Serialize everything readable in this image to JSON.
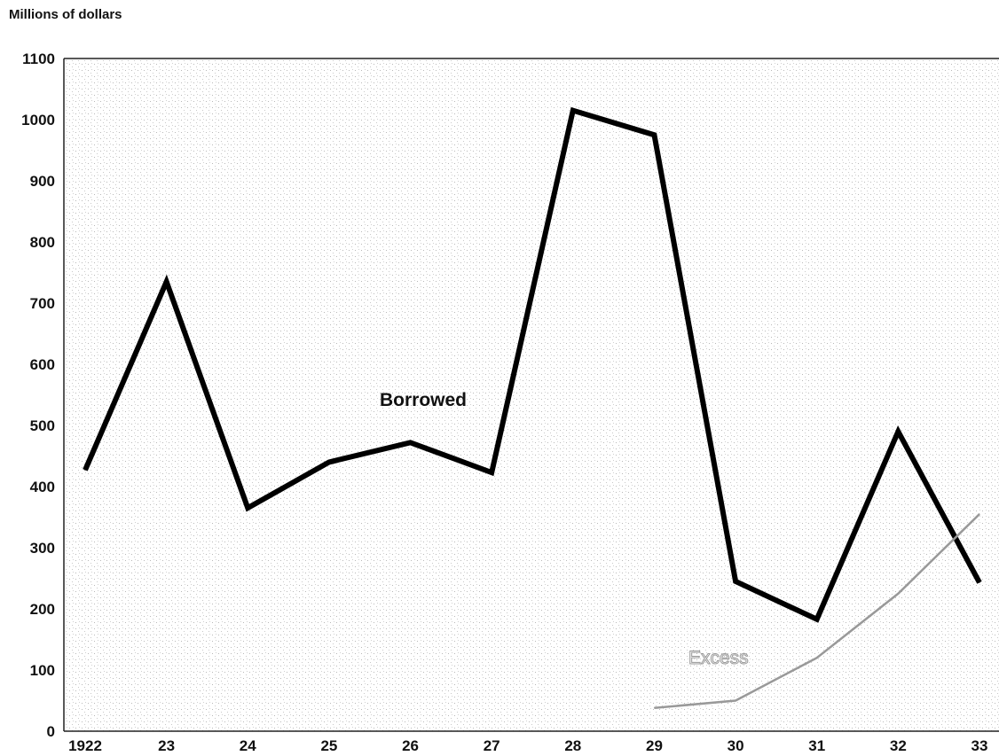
{
  "chart_data": {
    "type": "line",
    "ylabel": "Millions of dollars",
    "x_tick_labels": [
      "1922",
      "23",
      "24",
      "25",
      "26",
      "27",
      "28",
      "29",
      "30",
      "31",
      "32",
      "33"
    ],
    "y_ticks": [
      0,
      100,
      200,
      300,
      400,
      500,
      600,
      700,
      800,
      900,
      1000,
      1100
    ],
    "ylim": [
      0,
      1100
    ],
    "xlim": [
      1922,
      1933
    ],
    "grid": false,
    "series": [
      {
        "name": "Borrowed",
        "color": "#000000",
        "x": [
          1922,
          1923,
          1924,
          1925,
          1926,
          1927,
          1928,
          1929,
          1930,
          1931,
          1932,
          1933
        ],
        "y": [
          427,
          735,
          365,
          440,
          472,
          423,
          1015,
          975,
          245,
          183,
          490,
          243
        ]
      },
      {
        "name": "Excess",
        "color": "#999999",
        "x": [
          1929,
          1930,
          1931,
          1932,
          1933
        ],
        "y": [
          38,
          50,
          120,
          225,
          355
        ]
      }
    ]
  }
}
